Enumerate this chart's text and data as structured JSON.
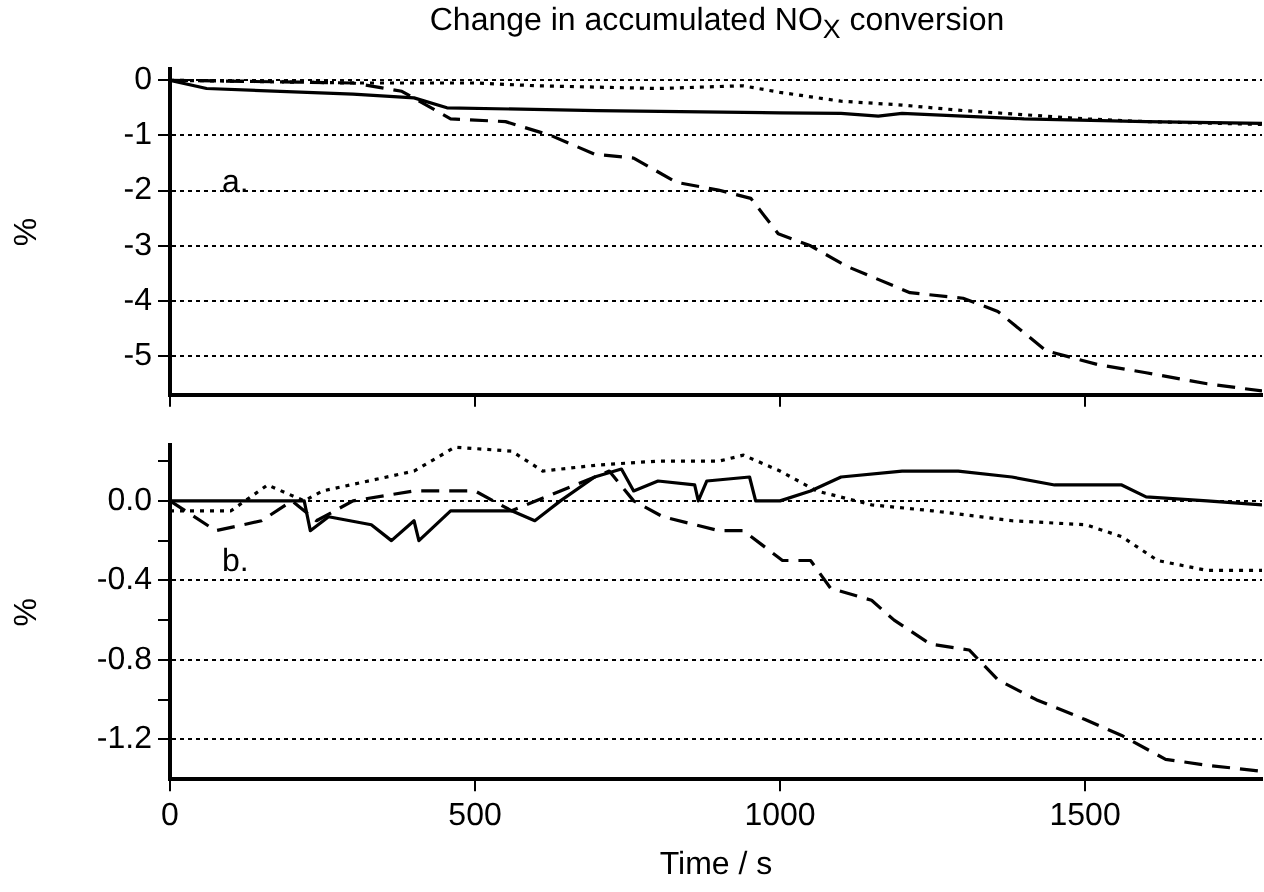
{
  "chart_data": [
    {
      "type": "line",
      "title": "Change in accumulated NO$_{X}$ conversion",
      "ylabel": "%",
      "annotations": [
        "a."
      ],
      "xlim": [
        0,
        1790
      ],
      "xticks": [
        0,
        500,
        1000,
        1500
      ],
      "ylim": [
        -5.7,
        0.2
      ],
      "yticks": [
        0,
        -1,
        -2,
        -3,
        -4,
        -5
      ],
      "grid": "y",
      "tick_labels": "y",
      "marker": "none",
      "series": [
        {
          "color": "#000000",
          "line_style": "solid",
          "x": [
            0,
            60,
            300,
            400,
            454,
            700,
            1000,
            1100,
            1161,
            1200,
            1400,
            1600,
            1790
          ],
          "values": [
            0,
            -0.15,
            -0.25,
            -0.32,
            -0.5,
            -0.55,
            -0.59,
            -0.6,
            -0.65,
            -0.6,
            -0.7,
            -0.75,
            -0.78
          ]
        },
        {
          "color": "#000000",
          "line_style": "dotted",
          "x": [
            0,
            300,
            500,
            600,
            800,
            939,
            1000,
            1100,
            1200,
            1300,
            1500,
            1600,
            1790
          ],
          "values": [
            0,
            -0.05,
            -0.05,
            -0.1,
            -0.15,
            -0.1,
            -0.22,
            -0.38,
            -0.45,
            -0.55,
            -0.7,
            -0.75,
            -0.8
          ]
        },
        {
          "color": "#000000",
          "line_style": "dashed",
          "x": [
            0,
            300,
            380,
            460,
            550,
            624,
            696,
            760,
            830,
            899,
            952,
            997,
            1050,
            1109,
            1213,
            1300,
            1357,
            1436,
            1520,
            1600,
            1700,
            1790
          ],
          "values": [
            0,
            -0.05,
            -0.2,
            -0.7,
            -0.75,
            -1,
            -1.34,
            -1.41,
            -1.85,
            -1.99,
            -2.14,
            -2.78,
            -3,
            -3.37,
            -3.85,
            -3.95,
            -4.19,
            -4.9,
            -5.15,
            -5.3,
            -5.5,
            -5.63
          ]
        }
      ]
    },
    {
      "type": "line",
      "xlabel": "Time / s",
      "ylabel": "%",
      "annotations": [
        "b."
      ],
      "xlim": [
        0,
        1790
      ],
      "xticks": [
        0,
        500,
        1000,
        1500
      ],
      "ylim": [
        -1.4,
        0.28
      ],
      "yticks": [
        {
          "value": 0.2,
          "label": null
        },
        {
          "value": 0,
          "label": "0.0"
        },
        {
          "value": -0.2,
          "label": null
        },
        -0.4,
        {
          "value": -0.6,
          "label": null
        },
        -0.8,
        {
          "value": -1,
          "label": null
        },
        -1.2
      ],
      "grid": "y",
      "marker": "none",
      "series": [
        {
          "color": "#000000",
          "line_style": "solid",
          "x": [
            0,
            220,
            230,
            260,
            330,
            363,
            400,
            408,
            460,
            560,
            598,
            640,
            696,
            740,
            760,
            800,
            860,
            866,
            880,
            950,
            960,
            1000,
            1050,
            1100,
            1200,
            1292,
            1380,
            1450,
            1560,
            1600,
            1700,
            1790
          ],
          "values": [
            0,
            0,
            -0.15,
            -0.08,
            -0.12,
            -0.2,
            -0.1,
            -0.2,
            -0.05,
            -0.05,
            -0.1,
            0,
            0.12,
            0.16,
            0.05,
            0.1,
            0.08,
            0,
            0.1,
            0.12,
            0,
            0,
            0.05,
            0.12,
            0.15,
            0.15,
            0.12,
            0.08,
            0.08,
            0.02,
            0,
            -0.02
          ]
        },
        {
          "color": "#000000",
          "line_style": "dotted",
          "x": [
            0,
            100,
            160,
            220,
            250,
            400,
            467,
            560,
            611,
            700,
            800,
            900,
            940,
            1000,
            1060,
            1150,
            1250,
            1380,
            1501,
            1560,
            1619,
            1700,
            1790
          ],
          "values": [
            -0.05,
            -0.05,
            0.08,
            0,
            0.05,
            0.15,
            0.27,
            0.25,
            0.15,
            0.18,
            0.2,
            0.2,
            0.23,
            0.15,
            0.05,
            -0.02,
            -0.05,
            -0.1,
            -0.12,
            -0.18,
            -0.3,
            -0.35,
            -0.35
          ]
        },
        {
          "color": "#000000",
          "line_style": "dashed",
          "x": [
            0,
            75,
            150,
            200,
            240,
            300,
            400,
            500,
            560,
            640,
            720,
            760,
            808,
            900,
            940,
            1004,
            1050,
            1083,
            1150,
            1187,
            1246,
            1310,
            1357,
            1420,
            1500,
            1560,
            1632,
            1700,
            1790
          ],
          "values": [
            0,
            -0.15,
            -0.1,
            0,
            -0.1,
            0,
            0.05,
            0.05,
            -0.05,
            0.05,
            0.15,
            0,
            -0.08,
            -0.15,
            -0.15,
            -0.3,
            -0.3,
            -0.44,
            -0.5,
            -0.6,
            -0.72,
            -0.75,
            -0.9,
            -1,
            -1.1,
            -1.18,
            -1.3,
            -1.33,
            -1.36
          ]
        }
      ]
    }
  ]
}
